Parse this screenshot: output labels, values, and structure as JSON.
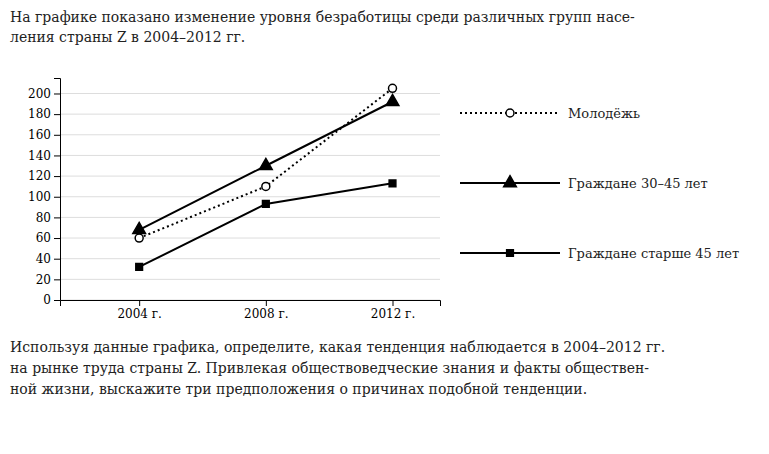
{
  "chart_data": {
    "type": "line",
    "title": "На графике показано изменение уровня безработицы среди различных групп насе-\nления страны Z в 2004–2012 гг.",
    "annotations": [
      "Используя данные графика, определите, какая тенденция наблюдается в 2004–2012 гг.\nна рынке труда страны Z. Привлекая обществоведческие знания и факты обществен-\nной жизни, выскажите три предположения о причинах подобной тенденции."
    ],
    "x": [
      2004,
      2008,
      2012
    ],
    "xlim": [
      2001.5,
      2013.5
    ],
    "xticks": [
      {
        "value": 2004,
        "label": "2004 г."
      },
      {
        "value": 2008,
        "label": "2008 г."
      },
      {
        "value": 2012,
        "label": "2012 г."
      }
    ],
    "ylim": [
      0,
      215
    ],
    "yticks": [
      0,
      20,
      40,
      60,
      80,
      100,
      120,
      140,
      160,
      180,
      200
    ],
    "grid": true,
    "legend": "right",
    "series": [
      {
        "name": "Молодёжь",
        "color": "#000000",
        "marker": "circle-open",
        "line_style": "dotted",
        "values": [
          60,
          110,
          205
        ]
      },
      {
        "name": "Граждане 30–45 лет",
        "color": "#000000",
        "marker": "triangle",
        "line_style": "solid",
        "values": [
          68,
          130,
          192
        ]
      },
      {
        "name": "Граждане старше 45 лет",
        "color": "#000000",
        "marker": "square",
        "line_style": "solid",
        "values": [
          32,
          93,
          113
        ]
      }
    ]
  }
}
